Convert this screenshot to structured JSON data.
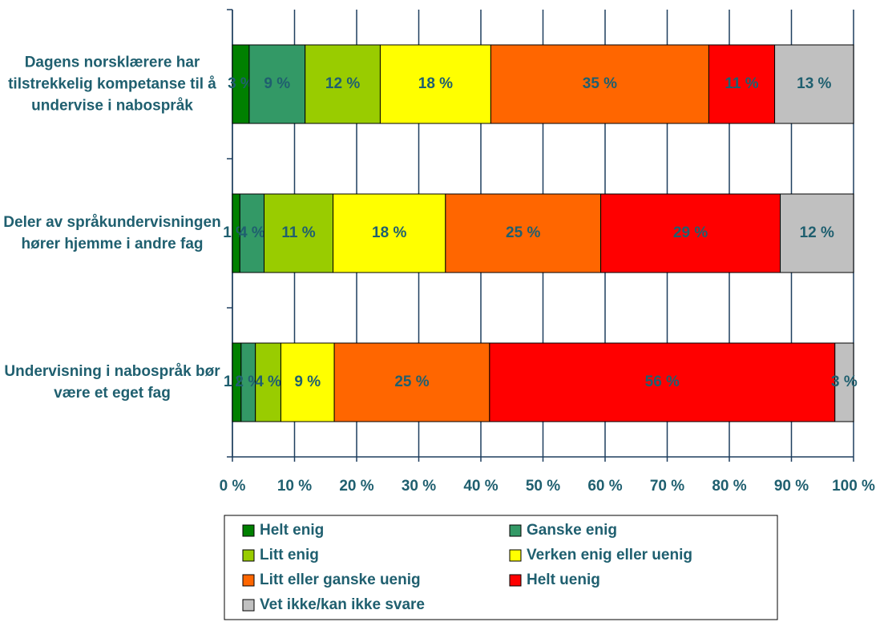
{
  "chart_data": {
    "type": "stacked-barh",
    "categories": [
      "Dagens norsklærere har tilstrekkelig kompetanse til å undervise i nabospråk",
      "Deler av språkundervisningen hører hjemme i andre fag",
      "Undervisning i nabospråk bør være et eget fag"
    ],
    "series": [
      {
        "name": "Helt enig",
        "color": "#008000",
        "values": [
          2.7,
          1.2,
          1.4
        ],
        "value_labels": [
          "3 %",
          "1 %",
          "1 %"
        ]
      },
      {
        "name": "Ganske enig",
        "color": "#339966",
        "values": [
          9.0,
          3.9,
          2.3
        ],
        "value_labels": [
          "9 %",
          "4 %",
          "2 %"
        ]
      },
      {
        "name": "Litt enig",
        "color": "#99cc00",
        "values": [
          12.1,
          11.1,
          4.1
        ],
        "value_labels": [
          "12 %",
          "11 %",
          "4 %"
        ]
      },
      {
        "name": "Verken enig eller uenig",
        "color": "#ffff00",
        "values": [
          17.8,
          18.1,
          8.6
        ],
        "value_labels": [
          "18 %",
          "18 %",
          "9 %"
        ]
      },
      {
        "name": "Litt eller ganske uenig",
        "color": "#ff6600",
        "values": [
          35.1,
          25.0,
          25.0
        ],
        "value_labels": [
          "35 %",
          "25 %",
          "25 %"
        ]
      },
      {
        "name": "Helt uenig",
        "color": "#ff0000",
        "values": [
          10.6,
          28.9,
          55.6
        ],
        "value_labels": [
          "11 %",
          "29 %",
          "56 %"
        ]
      },
      {
        "name": "Vet ikke/kan ikke svare",
        "color": "#c0c0c0",
        "values": [
          12.7,
          11.8,
          3.0
        ],
        "value_labels": [
          "13 %",
          "12 %",
          "3 %"
        ]
      }
    ],
    "xlim": [
      0,
      100
    ],
    "xticks": [
      {
        "value": 0,
        "label": "0 %"
      },
      {
        "value": 10,
        "label": "10 %"
      },
      {
        "value": 20,
        "label": "20 %"
      },
      {
        "value": 30,
        "label": "30 %"
      },
      {
        "value": 40,
        "label": "40 %"
      },
      {
        "value": 50,
        "label": "50 %"
      },
      {
        "value": 60,
        "label": "60 %"
      },
      {
        "value": 70,
        "label": "70 %"
      },
      {
        "value": 80,
        "label": "80 %"
      },
      {
        "value": 90,
        "label": "90 %"
      },
      {
        "value": 100,
        "label": "100 %"
      }
    ],
    "grid": true
  }
}
